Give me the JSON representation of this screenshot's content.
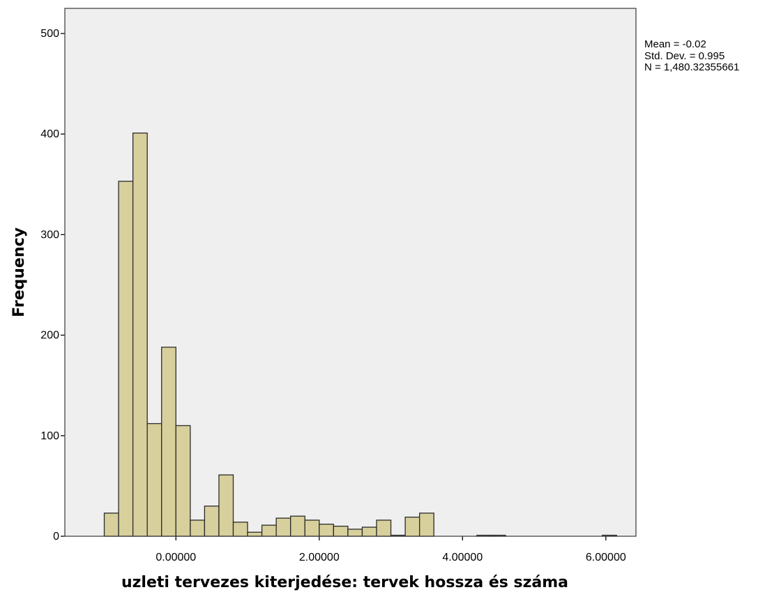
{
  "chart_data": {
    "type": "bar",
    "title": "",
    "xlabel": "uzleti tervezes kiterjedése: tervek hossza és száma",
    "ylabel": "Frequency",
    "ylim": [
      0,
      525
    ],
    "xlim": [
      -1.55,
      6.42
    ],
    "grid": false,
    "legend": "none",
    "colors": {
      "bar_fill": "#d8d09c",
      "bar_stroke": "#2a2a2a",
      "plot_background": "#efefef"
    },
    "bin_width": 0.2,
    "x_tick_labels": [
      "0.00000",
      "2.00000",
      "4.00000",
      "6.00000"
    ],
    "x_ticks": [
      0,
      2,
      4,
      6
    ],
    "y_tick_labels": [
      "0",
      "100",
      "200",
      "300",
      "400",
      "500"
    ],
    "y_ticks": [
      0,
      100,
      200,
      300,
      400,
      500
    ],
    "bins": [
      {
        "x0": -1.0,
        "value": 23
      },
      {
        "x0": -0.8,
        "value": 353
      },
      {
        "x0": -0.6,
        "value": 401
      },
      {
        "x0": -0.4,
        "value": 112
      },
      {
        "x0": -0.2,
        "value": 188
      },
      {
        "x0": 0.0,
        "value": 110
      },
      {
        "x0": 0.2,
        "value": 16
      },
      {
        "x0": 0.4,
        "value": 30
      },
      {
        "x0": 0.6,
        "value": 61
      },
      {
        "x0": 0.8,
        "value": 14
      },
      {
        "x0": 1.0,
        "value": 4
      },
      {
        "x0": 1.2,
        "value": 11
      },
      {
        "x0": 1.4,
        "value": 18
      },
      {
        "x0": 1.6,
        "value": 20
      },
      {
        "x0": 1.8,
        "value": 16
      },
      {
        "x0": 2.0,
        "value": 12
      },
      {
        "x0": 2.2,
        "value": 10
      },
      {
        "x0": 2.4,
        "value": 7
      },
      {
        "x0": 2.6,
        "value": 9
      },
      {
        "x0": 2.8,
        "value": 16
      },
      {
        "x0": 3.0,
        "value": 1
      },
      {
        "x0": 3.2,
        "value": 19
      },
      {
        "x0": 3.4,
        "value": 23
      },
      {
        "x0": 4.2,
        "value": 1
      },
      {
        "x0": 4.4,
        "value": 1
      },
      {
        "x0": 5.95,
        "value": 1
      }
    ],
    "stats": {
      "mean": "Mean = -0.02",
      "std_dev": "Std. Dev. = 0.995",
      "n": "N = 1,480.32355661"
    }
  }
}
